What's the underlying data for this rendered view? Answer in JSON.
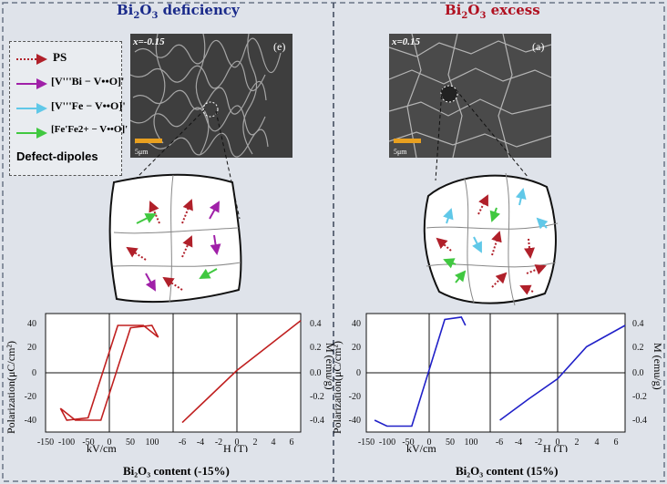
{
  "left_panel": {
    "title_main": "Bi",
    "title_sub1": "2",
    "title_mid": "O",
    "title_sub2": "3",
    "title_tail": " deficiency",
    "sem_label": "x=-0.15",
    "sem_letter": "(e)",
    "sem_scale": "5μm",
    "caption": "Bi₂O₃ content (-15%)",
    "pe_ylabel": "Polarization(μC/cm²)",
    "pe_xlabel": "kV/cm",
    "mh_xlabel": "H (T)",
    "mh_ylabel": "M (emu/g)"
  },
  "right_panel": {
    "title_main": "Bi",
    "title_sub1": "2",
    "title_mid": "O",
    "title_sub2": "3",
    "title_tail": " excess",
    "sem_label": "x=0.15",
    "sem_letter": "(a)",
    "sem_scale": "5μm",
    "caption": "Bi₂O₃ content (15%)",
    "pe_ylabel": "Polarization(μC/cm²)",
    "pe_xlabel": "kV/cm",
    "mh_xlabel": "H (T)",
    "mh_ylabel": "M (emu/g)"
  },
  "legend": {
    "title": "Defect-dipoles",
    "items": [
      {
        "label": "PS",
        "color": "#b0202a",
        "style": "dotted"
      },
      {
        "label": "[V'''Bi − V••O]'",
        "color": "#a020a8",
        "style": "solid"
      },
      {
        "label": "[V'''Fe − V••O]'",
        "color": "#60c8e8",
        "style": "solid"
      },
      {
        "label": "[Fe'Fe2+ − V••O]'",
        "color": "#40c840",
        "style": "solid"
      }
    ]
  },
  "axes": {
    "pe_ticks": [
      "-150",
      "-100",
      "-50",
      "0",
      "50",
      "100"
    ],
    "pe_yticks": [
      "40",
      "20",
      "0",
      "-20",
      "-40"
    ],
    "mh_ticks": [
      "-6",
      "-4",
      "-2",
      "0",
      "2",
      "4",
      "6"
    ],
    "mh_yticks": [
      "0.4",
      "0.2",
      "0.0",
      "-0.2",
      "-0.4"
    ]
  },
  "chart_data": [
    {
      "type": "line",
      "panel": "left",
      "kind": "P-E loop",
      "x_range": [
        -150,
        150
      ],
      "y_range": [
        -50,
        50
      ],
      "color": "#c02020",
      "series": [
        {
          "x": [
            -115,
            -80,
            -20,
            50,
            100,
            115,
            80,
            20,
            -50,
            -100,
            -115
          ],
          "y": [
            -30,
            -40,
            -40,
            38,
            40,
            30,
            40,
            40,
            -38,
            -40,
            -30
          ]
        }
      ]
    },
    {
      "type": "line",
      "panel": "left",
      "kind": "M-H loop",
      "x_range": [
        -7,
        7
      ],
      "y_range": [
        -0.5,
        0.5
      ],
      "color": "#c02020",
      "series": [
        {
          "x": [
            -6,
            -3,
            0,
            3,
            7
          ],
          "y": [
            -0.42,
            -0.2,
            0.02,
            0.2,
            0.44
          ]
        }
      ]
    },
    {
      "type": "line",
      "panel": "right",
      "kind": "P-E loop",
      "x_range": [
        -150,
        150
      ],
      "y_range": [
        -50,
        50
      ],
      "color": "#2020c8",
      "series": [
        {
          "x": [
            -130,
            -100,
            -40,
            40,
            80,
            90
          ],
          "y": [
            -40,
            -45,
            -45,
            45,
            47,
            40
          ]
        }
      ]
    },
    {
      "type": "line",
      "panel": "right",
      "kind": "M-H loop",
      "x_range": [
        -7,
        7
      ],
      "y_range": [
        -0.5,
        0.5
      ],
      "color": "#2020c8",
      "series": [
        {
          "x": [
            -6,
            -3,
            0,
            3,
            7
          ],
          "y": [
            -0.4,
            -0.22,
            -0.05,
            0.22,
            0.4
          ]
        }
      ]
    }
  ]
}
